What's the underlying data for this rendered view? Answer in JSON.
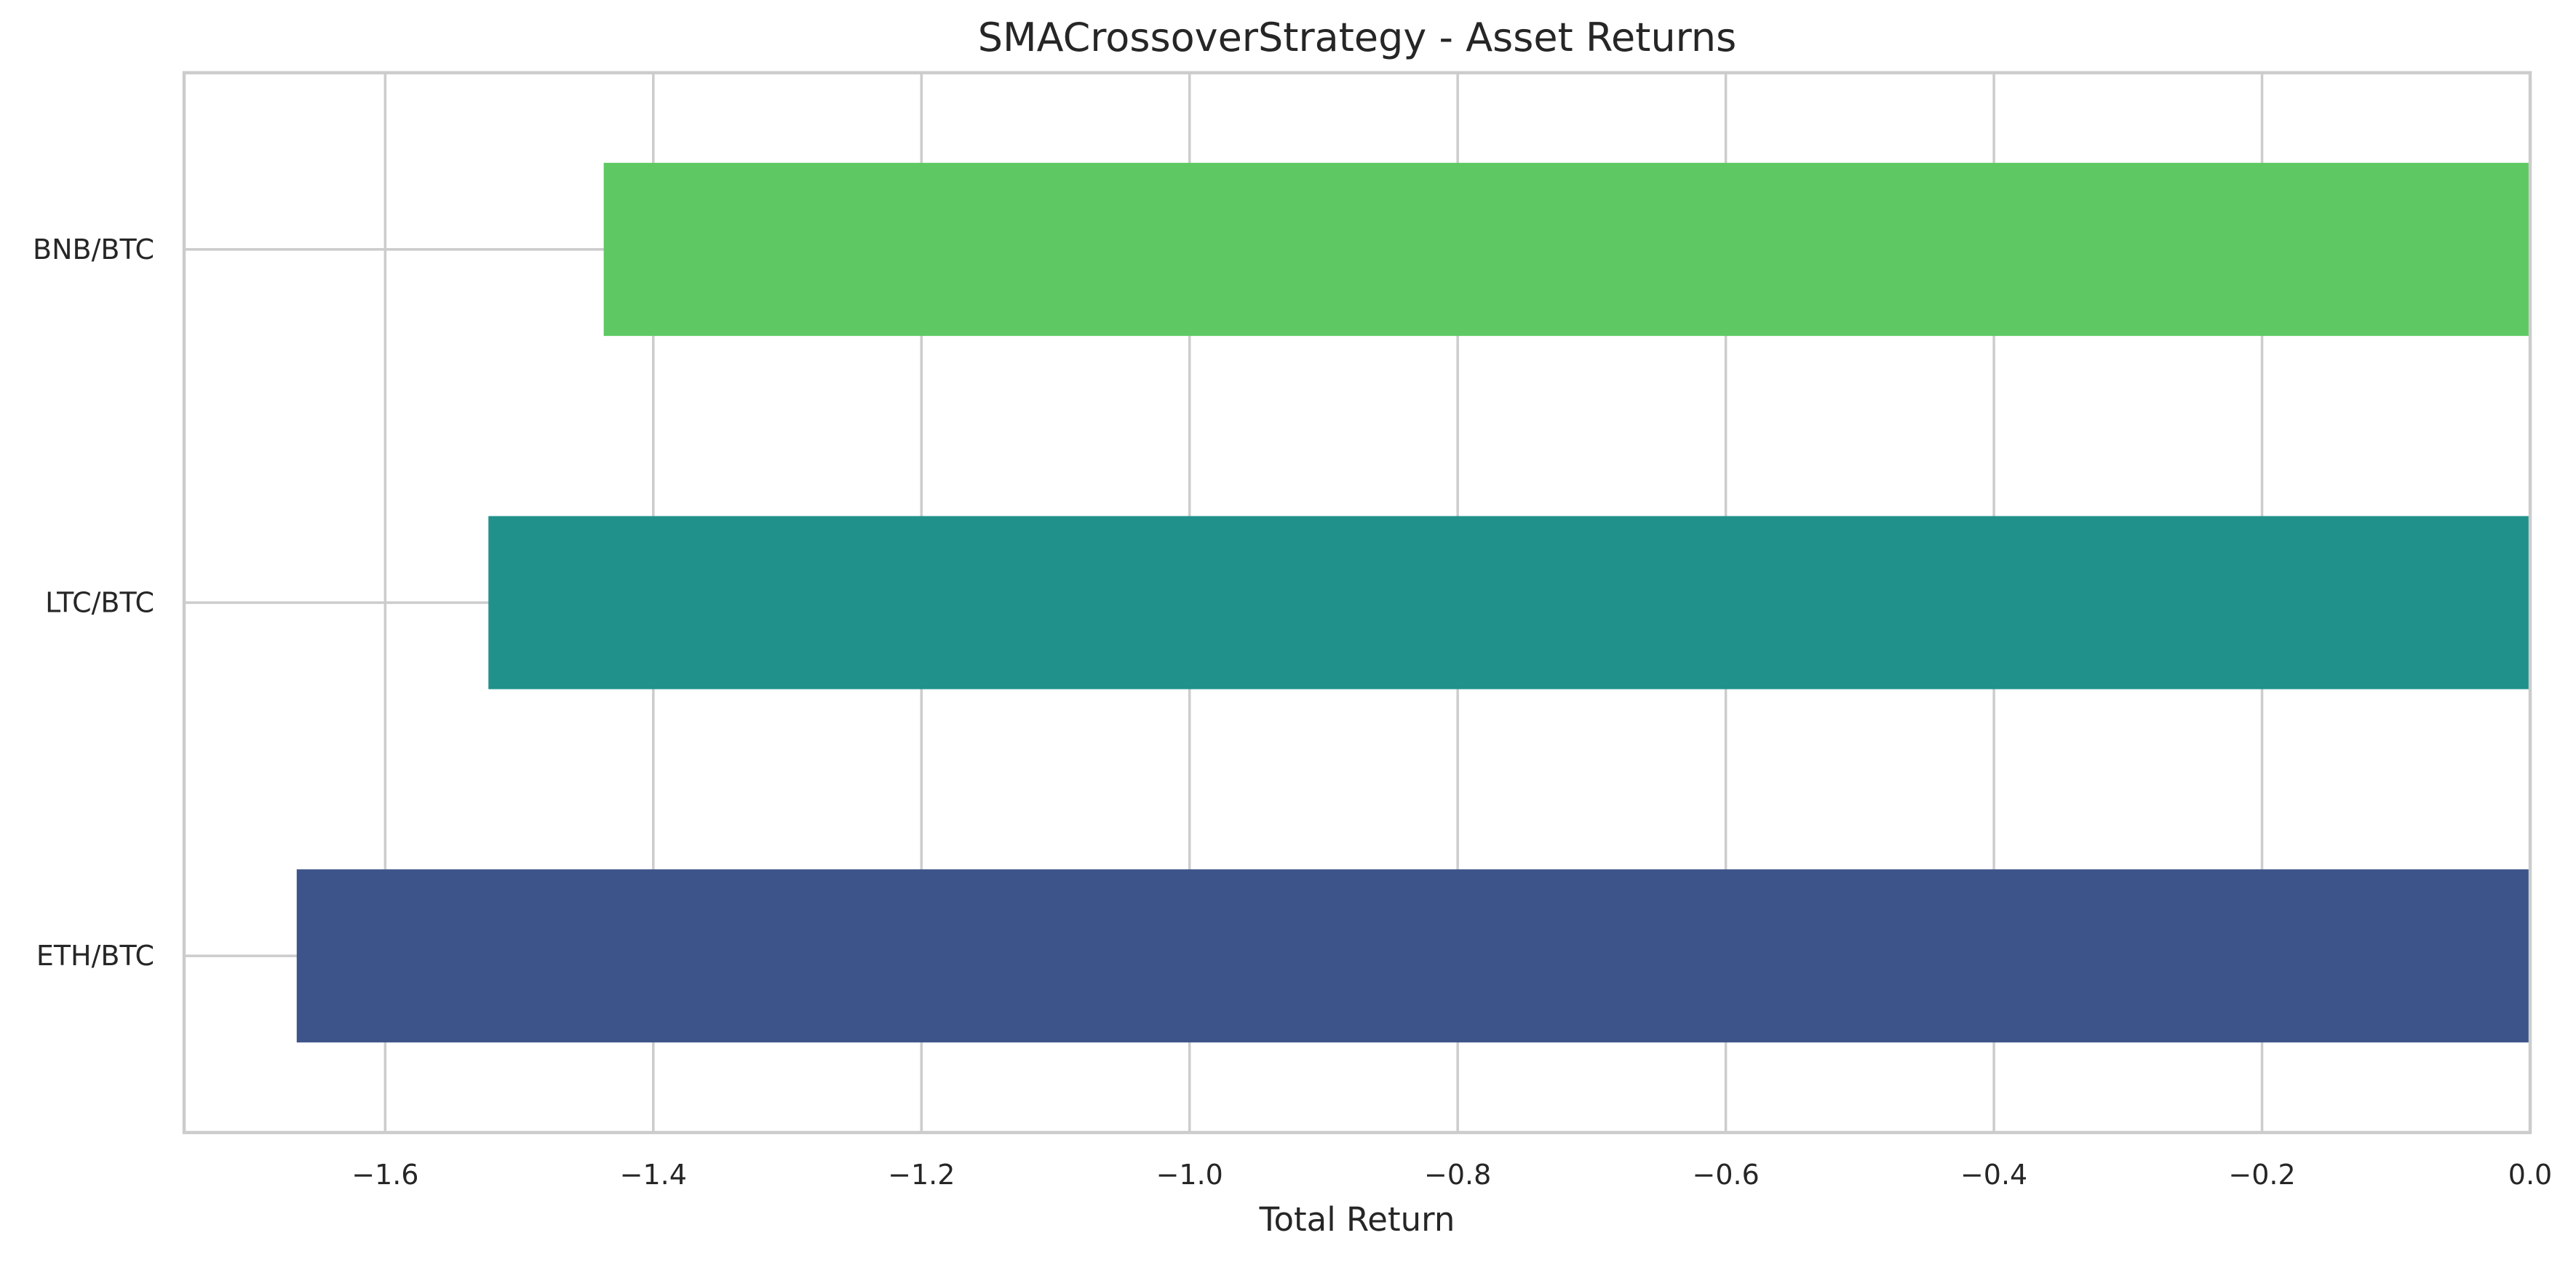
{
  "chart_data": {
    "type": "bar",
    "orientation": "horizontal",
    "title": "SMACrossoverStrategy - Asset Returns",
    "xlabel": "Total Return",
    "ylabel": "",
    "categories": [
      "ETH/BTC",
      "LTC/BTC",
      "BNB/BTC"
    ],
    "values": [
      -1.666,
      -1.523,
      -1.437
    ],
    "colors": [
      "#3d548a",
      "#21918c",
      "#5ec962"
    ],
    "xlim": [
      -1.75,
      0.0
    ],
    "xticks": [
      -1.6,
      -1.4,
      -1.2,
      -1.0,
      -0.8,
      -0.6,
      -0.4,
      -0.2,
      0.0
    ],
    "xtick_labels": [
      "−1.6",
      "−1.4",
      "−1.2",
      "−1.0",
      "−0.8",
      "−0.6",
      "−0.4",
      "−0.2",
      "0.0"
    ],
    "grid": true,
    "legend": "none"
  }
}
